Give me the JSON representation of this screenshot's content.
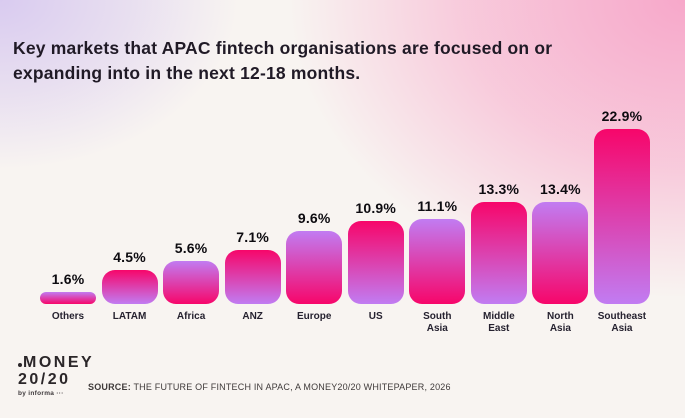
{
  "title": {
    "line1": "Key markets that APAC fintech organisations are focused on or",
    "line2": "expanding into in the next 12-18 months."
  },
  "chart_data": {
    "type": "bar",
    "title": "Key markets that APAC fintech organisations are focused on or expanding into in the next 12-18 months.",
    "categories": [
      "Others",
      "LATAM",
      "Africa",
      "ANZ",
      "Europe",
      "US",
      "South Asia",
      "Middle East",
      "North Asia",
      "Southeast Asia"
    ],
    "categories_display": [
      [
        "Others"
      ],
      [
        "LATAM"
      ],
      [
        "Africa"
      ],
      [
        "ANZ"
      ],
      [
        "Europe"
      ],
      [
        "US"
      ],
      [
        "South",
        "Asia"
      ],
      [
        "Middle",
        "East"
      ],
      [
        "North",
        "Asia"
      ],
      [
        "Southeast",
        "Asia"
      ]
    ],
    "values": [
      1.6,
      4.5,
      5.6,
      7.1,
      9.6,
      10.9,
      11.1,
      13.3,
      13.4,
      22.9
    ],
    "value_labels": [
      "1.6%",
      "4.5%",
      "5.6%",
      "7.1%",
      "9.6%",
      "10.9%",
      "11.1%",
      "13.3%",
      "13.4%",
      "22.9%"
    ],
    "unit": "%",
    "ylim": [
      0,
      24
    ],
    "grid": false,
    "legend": false,
    "bar_gradient_colors": {
      "pink": "#F7066A",
      "purple": "#C17CF2"
    },
    "bar_gradient_pattern": "alternating top-to-bottom: even-index bars purple to pink, odd-index bars pink to purple"
  },
  "footer": {
    "logo_line1": "MONEY",
    "logo_line2": "20/20",
    "logo_byline": "by informa ···",
    "source_label": "SOURCE:",
    "source_text": " THE FUTURE OF FINTECH IN APAC, A MONEY20/20 WHITEPAPER, 2026"
  }
}
